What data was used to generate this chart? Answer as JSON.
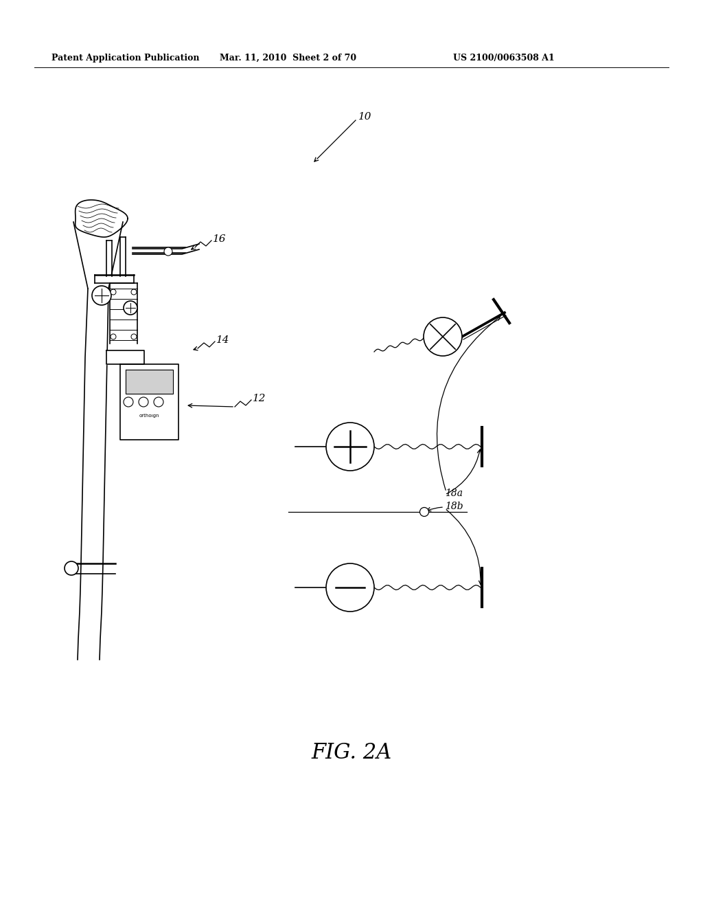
{
  "background_color": "#ffffff",
  "header_left": "Patent Application Publication",
  "header_mid": "Mar. 11, 2010  Sheet 2 of 70",
  "header_right": "US 2100/0063508 A1",
  "figure_label": "FIG. 2A",
  "label_10": "10",
  "label_12": "12",
  "label_14": "14",
  "label_16": "16",
  "label_18a": "18a",
  "label_18b": "18b"
}
